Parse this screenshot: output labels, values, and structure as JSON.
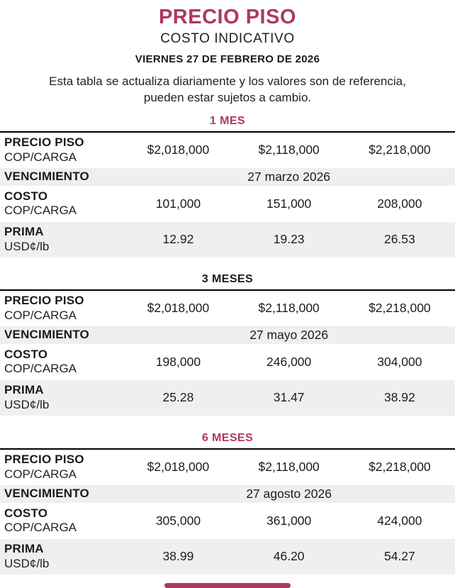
{
  "header": {
    "title": "PRECIO PISO",
    "subtitle": "COSTO INDICATIVO",
    "date": "VIERNES 27 DE FEBRERO DE 2026",
    "disclaimer_line1": "Esta tabla se actualiza diariamente y los valores son de referencia,",
    "disclaimer_line2": "pueden estar sujetos a cambio."
  },
  "labels": {
    "precio_piso": "PRECIO PISO",
    "cop_carga": "COP/CARGA",
    "vencimiento": "VENCIMIENTO",
    "costo": "COSTO",
    "prima": "PRIMA",
    "usd_lb": "USD¢/lb"
  },
  "colors": {
    "accent": "#ad3a5c",
    "dark": "#1a1a1a",
    "row_shade": "#efefef"
  },
  "tables": [
    {
      "period": "1 MES",
      "period_color": "#ad3a5c",
      "precio_piso": [
        "$2,018,000",
        "$2,118,000",
        "$2,218,000"
      ],
      "vencimiento": "27 marzo 2026",
      "costo": [
        "101,000",
        "151,000",
        "208,000"
      ],
      "prima": [
        "12.92",
        "19.23",
        "26.53"
      ]
    },
    {
      "period": "3 MESES",
      "period_color": "#1a1a1a",
      "precio_piso": [
        "$2,018,000",
        "$2,118,000",
        "$2,218,000"
      ],
      "vencimiento": "27 mayo 2026",
      "costo": [
        "198,000",
        "246,000",
        "304,000"
      ],
      "prima": [
        "25.28",
        "31.47",
        "38.92"
      ]
    },
    {
      "period": "6 MESES",
      "period_color": "#ad3a5c",
      "precio_piso": [
        "$2,018,000",
        "$2,118,000",
        "$2,218,000"
      ],
      "vencimiento": "27 agosto 2026",
      "costo": [
        "305,000",
        "361,000",
        "424,000"
      ],
      "prima": [
        "38.99",
        "46.20",
        "54.27"
      ]
    }
  ]
}
